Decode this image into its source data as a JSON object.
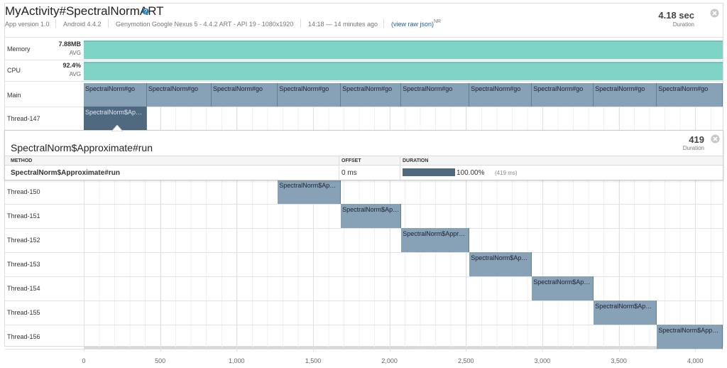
{
  "header": {
    "title": "MyActivity#SpectralNormART",
    "info": [
      "App version 1.0",
      "Android 4.4.2",
      "Genymotion Google Nexus 5 - 4.4.2 ART - API 19 - 1080x1920",
      "14:18 — 14 minutes ago"
    ],
    "raw_json_link": "(view raw json)",
    "badge": "NR",
    "duration": "4.18 sec",
    "duration_label": "Duration"
  },
  "metrics": [
    {
      "name": "Memory",
      "value": "7.88MB",
      "stat": "AVG"
    },
    {
      "name": "CPU",
      "value": "92.4%",
      "stat": "AVG"
    }
  ],
  "timeline": {
    "xlim": [
      0,
      4180
    ],
    "xticks": [
      0,
      500,
      {
        "value": 1000,
        "label": "1,000"
      },
      {
        "value": 1500,
        "label": "1,500"
      },
      {
        "value": 2000,
        "label": "2,000"
      },
      {
        "value": 2500,
        "label": "2,500"
      },
      {
        "value": 3000,
        "label": "3,000"
      },
      {
        "value": 3500,
        "label": "3,500"
      },
      {
        "value": 4000,
        "label": "4,000"
      }
    ],
    "threads": [
      {
        "name": "Main",
        "spans": [
          {
            "label": "SpectralNorm#go",
            "start": 0,
            "end": 413
          },
          {
            "label": "SpectralNorm#go",
            "start": 413,
            "end": 836
          },
          {
            "label": "SpectralNorm#go",
            "start": 836,
            "end": 1269
          },
          {
            "label": "SpectralNorm#go",
            "start": 1269,
            "end": 1682
          },
          {
            "label": "SpectralNorm#go",
            "start": 1682,
            "end": 2077
          },
          {
            "label": "SpectralNorm#go",
            "start": 2077,
            "end": 2523
          },
          {
            "label": "SpectralNorm#go",
            "start": 2523,
            "end": 2932
          },
          {
            "label": "SpectralNorm#go",
            "start": 2932,
            "end": 3336
          },
          {
            "label": "SpectralNorm#go",
            "start": 3336,
            "end": 3749
          },
          {
            "label": "SpectralNorm#go",
            "start": 3749,
            "end": 4180
          }
        ]
      },
      {
        "name": "Thread-147",
        "spans": [
          {
            "label": "SpectralNorm$Approximate#run",
            "start": 0,
            "end": 413
          }
        ]
      },
      {
        "name": "Thread-150",
        "spans": [
          {
            "label": "SpectralNorm$Approximate#run",
            "start": 1269,
            "end": 1682
          }
        ]
      },
      {
        "name": "Thread-151",
        "spans": [
          {
            "label": "SpectralNorm$Approximate#run",
            "start": 1682,
            "end": 2077
          }
        ]
      },
      {
        "name": "Thread-152",
        "spans": [
          {
            "label": "SpectralNorm$Approximate#run",
            "start": 2077,
            "end": 2523
          }
        ]
      },
      {
        "name": "Thread-153",
        "spans": [
          {
            "label": "SpectralNorm$Approximate#run",
            "start": 2523,
            "end": 2932
          }
        ]
      },
      {
        "name": "Thread-154",
        "spans": [
          {
            "label": "SpectralNorm$Approximate#run",
            "start": 2932,
            "end": 3336
          }
        ]
      },
      {
        "name": "Thread-155",
        "spans": [
          {
            "label": "SpectralNorm$Approximate#run",
            "start": 3336,
            "end": 3749
          }
        ]
      },
      {
        "name": "Thread-156",
        "spans": [
          {
            "label": "SpectralNorm$Approximate#run",
            "start": 3749,
            "end": 4180
          }
        ]
      }
    ]
  },
  "detail": {
    "title": "SpectralNorm$Approximate#run",
    "duration": "419",
    "duration_label": "Duration",
    "columns": [
      "METHOD",
      "OFFSET",
      "DURATION"
    ],
    "rows": [
      {
        "method": "SpectralNorm$Approximate#run",
        "offset": "0 ms",
        "percent": "100.00%",
        "duration": "(419 ms)"
      }
    ]
  }
}
